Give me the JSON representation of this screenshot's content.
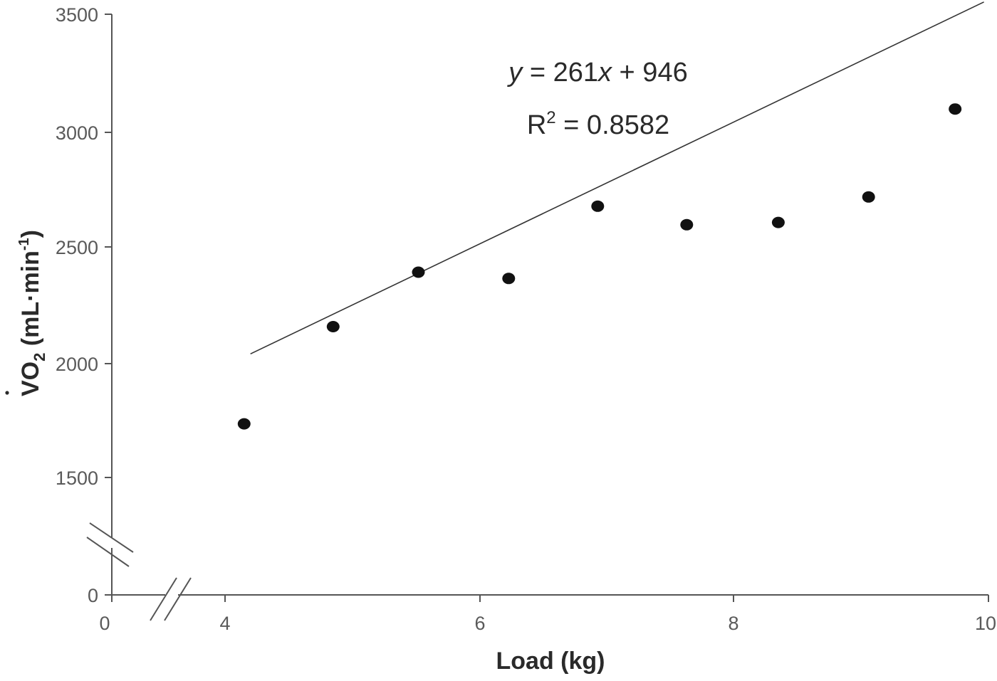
{
  "chart_data": {
    "type": "scatter",
    "title": "",
    "xlabel": "Load (kg)",
    "ylabel_main": "VO",
    "ylabel_sub": "2",
    "ylabel_rest": " (mL·min",
    "ylabel_sup": "-1",
    "ylabel_close": ")",
    "x_ticks": [
      "0",
      "4",
      "6",
      "8",
      "10"
    ],
    "y_ticks": [
      "0",
      "1500",
      "2000",
      "2500",
      "3000",
      "3500"
    ],
    "xlim": [
      4,
      10
    ],
    "ylim": [
      1500,
      3500
    ],
    "axis_breaks": true,
    "grid": false,
    "points": [
      {
        "x": 4.15,
        "y": 1740
      },
      {
        "x": 4.85,
        "y": 2160
      },
      {
        "x": 5.52,
        "y": 2395
      },
      {
        "x": 6.23,
        "y": 2368
      },
      {
        "x": 6.93,
        "y": 2680
      },
      {
        "x": 7.63,
        "y": 2600
      },
      {
        "x": 8.35,
        "y": 2610
      },
      {
        "x": 9.06,
        "y": 2720
      },
      {
        "x": 9.74,
        "y": 3100
      }
    ],
    "trendline": {
      "slope": 261,
      "intercept": 946,
      "x_start": 4.2,
      "x_end": 10
    },
    "equation": {
      "y": "y",
      "eq": " = 261",
      "x": "x",
      "rest": " + 946"
    },
    "r2": {
      "R": "R",
      "sup": "2",
      "rest": " = 0.8582"
    },
    "colors": {
      "points": "#111111",
      "line": "#333333",
      "axis": "#555555"
    }
  }
}
